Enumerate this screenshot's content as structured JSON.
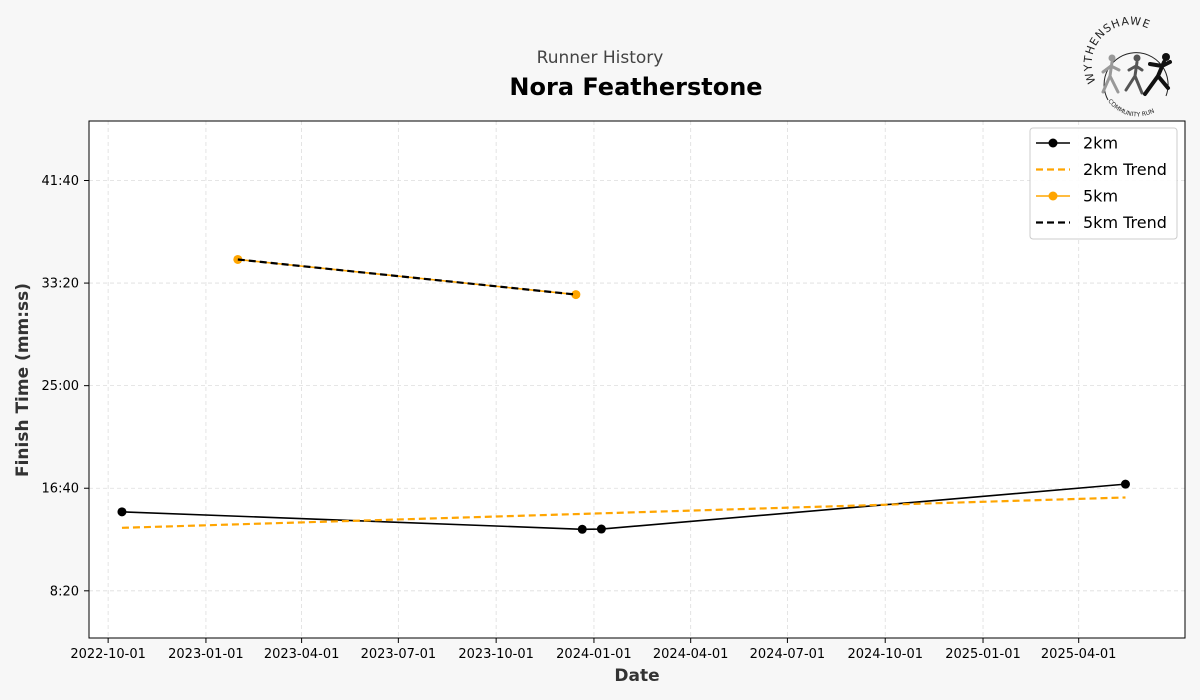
{
  "header": {
    "supertitle": "Runner History",
    "title": "Nora Featherstone"
  },
  "logo": {
    "top_text": "WYTHENSHAWE",
    "bottom_text": "COMMUNITY RUN"
  },
  "colors": {
    "black": "#000000",
    "orange": "#FFA500",
    "grid": "#dddddd"
  },
  "chart_data": {
    "type": "line",
    "xlabel": "Date",
    "ylabel": "Finish Time (mm:ss)",
    "x_axis_type": "date",
    "xlim": [
      "2022-09-13",
      "2025-07-10"
    ],
    "ylim_seconds": [
      270,
      2790
    ],
    "x_ticks": [
      "2022-10-01",
      "2023-01-01",
      "2023-04-01",
      "2023-07-01",
      "2023-10-01",
      "2024-01-01",
      "2024-04-01",
      "2024-07-01",
      "2024-10-01",
      "2025-01-01",
      "2025-04-01"
    ],
    "y_ticks": [
      {
        "seconds": 500,
        "label": "8:20"
      },
      {
        "seconds": 1000,
        "label": "16:40"
      },
      {
        "seconds": 1500,
        "label": "25:00"
      },
      {
        "seconds": 2000,
        "label": "33:20"
      },
      {
        "seconds": 2500,
        "label": "41:40"
      }
    ],
    "grid": true,
    "legend_position": "top-right",
    "series": [
      {
        "name": "2km",
        "color": "#000000",
        "style": "solid",
        "marker": "circle",
        "points": [
          {
            "date": "2022-10-14",
            "seconds": 885
          },
          {
            "date": "2023-12-21",
            "seconds": 800
          },
          {
            "date": "2024-01-08",
            "seconds": 801
          },
          {
            "date": "2025-05-15",
            "seconds": 1020
          }
        ]
      },
      {
        "name": "2km Trend",
        "color": "#FFA500",
        "style": "dashed",
        "marker": "none",
        "points": [
          {
            "date": "2022-10-14",
            "seconds": 807
          },
          {
            "date": "2025-05-15",
            "seconds": 955
          }
        ]
      },
      {
        "name": "5km",
        "color": "#FFA500",
        "style": "solid",
        "marker": "circle",
        "points": [
          {
            "date": "2023-01-31",
            "seconds": 2115
          },
          {
            "date": "2023-12-15",
            "seconds": 1944
          }
        ]
      },
      {
        "name": "5km Trend",
        "color": "#000000",
        "style": "dashed",
        "marker": "none",
        "points": [
          {
            "date": "2023-01-31",
            "seconds": 2115
          },
          {
            "date": "2023-12-15",
            "seconds": 1944
          }
        ]
      }
    ]
  }
}
